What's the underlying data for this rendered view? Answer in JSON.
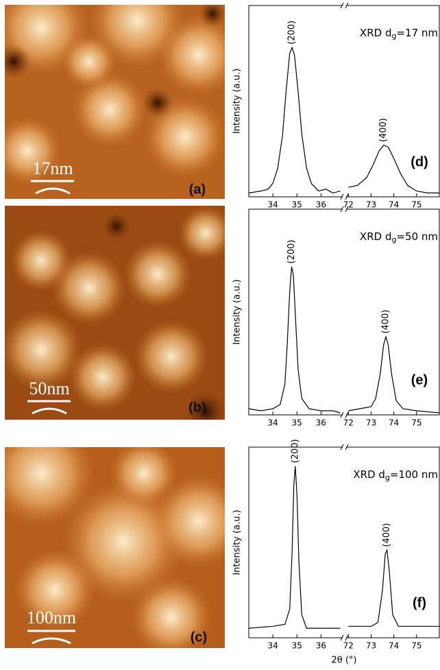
{
  "images": [
    {
      "scale_label": "17nm",
      "panel_label": "(a)"
    },
    {
      "scale_label": "50nm",
      "panel_label": "(b)"
    },
    {
      "scale_label": "100nm",
      "panel_label": "(c)"
    }
  ],
  "chart_data": [
    {
      "type": "line",
      "ylabel": "Intensity (a.u.)",
      "annotation": {
        "prefix": "XRD d",
        "sub": "g",
        "suffix": "=17 nm"
      },
      "panel_label": "(d)",
      "color": "#000000",
      "xlim": [
        33,
        36.9
      ],
      "x2lim": [
        71.9,
        76
      ],
      "ylim": [
        0,
        1
      ],
      "xticks": [
        34,
        35,
        36
      ],
      "x2ticks": [
        72,
        73,
        74,
        75
      ],
      "x": [
        33.0,
        33.5,
        33.8,
        34.0,
        34.2,
        34.4,
        34.55,
        34.7,
        34.8,
        34.9,
        35.05,
        35.2,
        35.4,
        35.6,
        35.9,
        36.2,
        36.5,
        36.8,
        null,
        72.0,
        72.4,
        72.8,
        73.1,
        73.35,
        73.55,
        73.75,
        74.0,
        74.3,
        74.6,
        75.0,
        75.5,
        76.0
      ],
      "values": [
        0.02,
        0.03,
        0.04,
        0.07,
        0.15,
        0.32,
        0.55,
        0.75,
        0.78,
        0.74,
        0.55,
        0.33,
        0.15,
        0.07,
        0.03,
        0.04,
        0.02,
        0.03,
        null,
        0.05,
        0.06,
        0.1,
        0.17,
        0.24,
        0.27,
        0.26,
        0.2,
        0.12,
        0.06,
        0.03,
        0.02,
        0.02
      ],
      "peaks": [
        {
          "label": "(200)",
          "x": 34.8
        },
        {
          "label": "(400)",
          "x": 73.55
        }
      ]
    },
    {
      "type": "line",
      "ylabel": "Intensity (a.u.)",
      "annotation": {
        "prefix": "XRD d",
        "sub": "g",
        "suffix": "=50 nm"
      },
      "panel_label": "(e)",
      "color": "#000000",
      "xlim": [
        33,
        36.9
      ],
      "x2lim": [
        71.9,
        76
      ],
      "ylim": [
        0,
        1
      ],
      "xticks": [
        34,
        35,
        36
      ],
      "x2ticks": [
        72,
        73,
        74,
        75
      ],
      "x": [
        33.0,
        33.5,
        34.0,
        34.3,
        34.5,
        34.6,
        34.7,
        34.78,
        34.85,
        34.95,
        35.05,
        35.2,
        35.5,
        36.0,
        36.5,
        36.8,
        null,
        72.0,
        72.5,
        73.0,
        73.2,
        73.4,
        73.55,
        73.65,
        73.75,
        73.9,
        74.1,
        74.4,
        75.0,
        76.0
      ],
      "values": [
        0.03,
        0.02,
        0.03,
        0.05,
        0.15,
        0.35,
        0.6,
        0.72,
        0.68,
        0.45,
        0.22,
        0.08,
        0.03,
        0.02,
        0.02,
        0.01,
        null,
        0.02,
        0.03,
        0.04,
        0.08,
        0.2,
        0.34,
        0.38,
        0.34,
        0.2,
        0.07,
        0.03,
        0.02,
        0.01
      ],
      "peaks": [
        {
          "label": "(200)",
          "x": 34.78
        },
        {
          "label": "(400)",
          "x": 73.65
        }
      ]
    },
    {
      "type": "line",
      "ylabel": "Intensity (a.u.)",
      "xlabel": "2θ (°)",
      "annotation": {
        "prefix": "XRD d",
        "sub": "g",
        "suffix": "=100 nm"
      },
      "panel_label": "(f)",
      "color": "#000000",
      "xlim": [
        33,
        36.9
      ],
      "x2lim": [
        71.9,
        76
      ],
      "ylim": [
        0,
        1
      ],
      "xticks": [
        34,
        35,
        36
      ],
      "x2ticks": [
        72,
        73,
        74,
        75
      ],
      "x": [
        33.0,
        34.0,
        34.5,
        34.7,
        34.8,
        34.87,
        34.93,
        35.0,
        35.08,
        35.2,
        35.4,
        36.0,
        36.8,
        null,
        72.0,
        73.0,
        73.3,
        73.5,
        73.62,
        73.7,
        73.8,
        73.95,
        74.2,
        75.0,
        76.0
      ],
      "values": [
        0.05,
        0.06,
        0.07,
        0.15,
        0.45,
        0.8,
        0.9,
        0.75,
        0.4,
        0.12,
        0.05,
        0.05,
        0.05,
        null,
        0.06,
        0.06,
        0.08,
        0.25,
        0.44,
        0.46,
        0.35,
        0.12,
        0.06,
        0.06,
        0.06
      ],
      "peaks": [
        {
          "label": "(200)",
          "x": 34.93
        },
        {
          "label": "(400)",
          "x": 73.7
        }
      ]
    }
  ]
}
